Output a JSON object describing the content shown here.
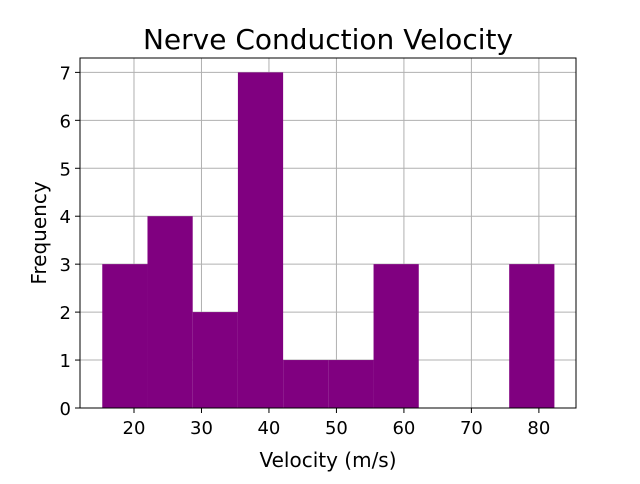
{
  "chart_data": {
    "type": "bar",
    "title": "Nerve Conduction Velocity",
    "xlabel": "Velocity (m/s)",
    "ylabel": "Frequency",
    "xlim": [
      12,
      85.5
    ],
    "ylim": [
      0,
      7.3
    ],
    "xticks": [
      20,
      30,
      40,
      50,
      60,
      70,
      80
    ],
    "yticks": [
      0,
      1,
      2,
      3,
      4,
      5,
      6,
      7
    ],
    "grid": true,
    "bar_color": "#800080",
    "bins": [
      {
        "start": 15.3,
        "end": 22.0,
        "count": 3
      },
      {
        "start": 22.0,
        "end": 28.7,
        "count": 4
      },
      {
        "start": 28.7,
        "end": 35.4,
        "count": 2
      },
      {
        "start": 35.4,
        "end": 42.1,
        "count": 7
      },
      {
        "start": 42.1,
        "end": 48.8,
        "count": 1
      },
      {
        "start": 48.8,
        "end": 55.5,
        "count": 1
      },
      {
        "start": 55.5,
        "end": 62.2,
        "count": 3
      },
      {
        "start": 62.2,
        "end": 68.9,
        "count": 0
      },
      {
        "start": 68.9,
        "end": 75.6,
        "count": 0
      },
      {
        "start": 75.6,
        "end": 82.3,
        "count": 3
      }
    ]
  }
}
